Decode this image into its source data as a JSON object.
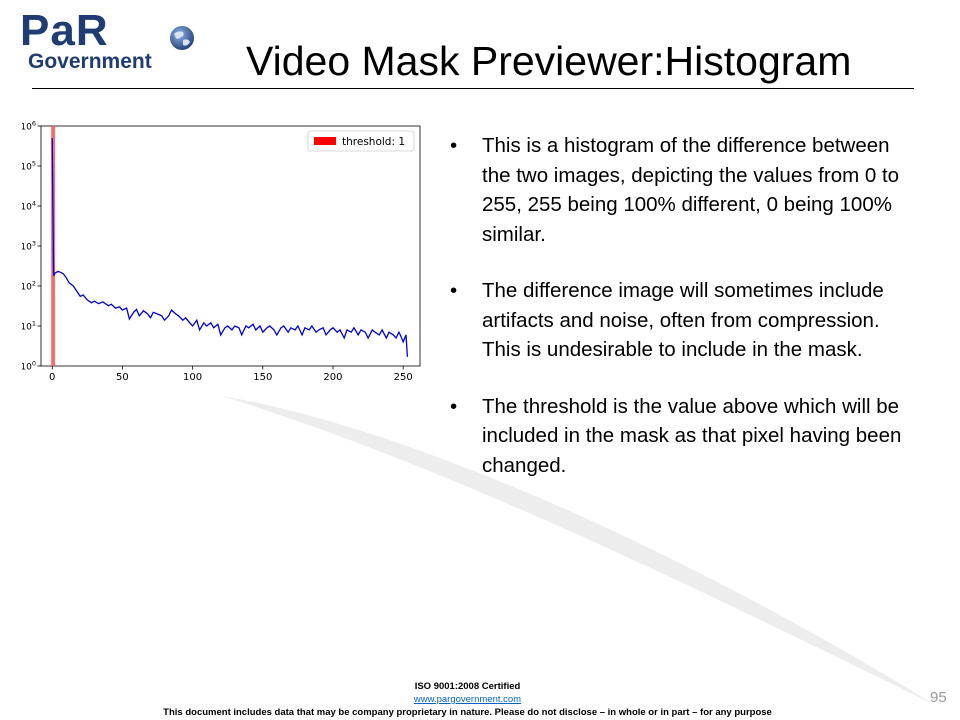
{
  "header": {
    "logo_main": "PaR",
    "logo_sub": "Government",
    "title": "Video Mask Previewer:Histogram"
  },
  "bullets": [
    "This is a histogram of the difference between the two images, depicting the values from 0 to 255, 255 being 100% different, 0 being 100% similar.",
    "The difference image will sometimes include artifacts and noise, often from compression. This is undesirable to include in the mask.",
    "The threshold is the value above which will be included in the mask as that pixel having been changed."
  ],
  "bullet_marker": "•",
  "footer": {
    "iso": "ISO 9001:2008 Certified",
    "url": "www.pargovernment.com",
    "disclaimer": "This document includes data that may be company proprietary in nature. Please do not disclose – in whole or in part – for any purpose"
  },
  "page_number": "95",
  "colors": {
    "logo_blue": "#1f3c73",
    "series": "#0000dd",
    "threshold": "#ff0000",
    "link": "#0563c1"
  },
  "chart_data": {
    "type": "line",
    "title": "",
    "xlabel": "",
    "ylabel": "",
    "xlim": [
      -8,
      262
    ],
    "ylim": [
      1,
      1000000
    ],
    "y_scale": "log",
    "x_ticks": [
      0,
      50,
      100,
      150,
      200,
      250
    ],
    "y_ticks": [
      1,
      10,
      100,
      1000,
      10000,
      100000,
      1000000
    ],
    "y_tick_labels": [
      {
        "base": "10",
        "exp": "0"
      },
      {
        "base": "10",
        "exp": "1"
      },
      {
        "base": "10",
        "exp": "2"
      },
      {
        "base": "10",
        "exp": "3"
      },
      {
        "base": "10",
        "exp": "4"
      },
      {
        "base": "10",
        "exp": "5"
      },
      {
        "base": "10",
        "exp": "6"
      }
    ],
    "legend": {
      "label": "threshold: 1",
      "position": "top-right"
    },
    "threshold": 1,
    "series": [
      {
        "x": [
          0,
          1,
          2,
          4,
          6,
          8,
          10,
          12,
          15,
          18,
          20,
          22,
          25,
          28,
          30,
          33,
          36,
          40,
          42,
          45,
          48,
          50,
          53,
          55,
          58,
          60,
          62,
          65,
          68,
          70,
          72,
          75,
          78,
          80,
          83,
          85,
          88,
          90,
          93,
          95,
          98,
          100,
          103,
          105,
          108,
          110,
          113,
          115,
          118,
          120,
          123,
          125,
          128,
          130,
          133,
          135,
          138,
          140,
          143,
          145,
          148,
          150,
          153,
          155,
          158,
          160,
          163,
          165,
          168,
          170,
          173,
          175,
          178,
          180,
          183,
          185,
          188,
          190,
          193,
          195,
          198,
          200,
          203,
          205,
          208,
          210,
          213,
          215,
          218,
          220,
          223,
          225,
          228,
          230,
          233,
          235,
          238,
          240,
          243,
          245,
          247,
          248,
          250,
          252,
          253
        ],
        "y": [
          500000,
          180,
          210,
          230,
          220,
          200,
          160,
          120,
          100,
          70,
          55,
          60,
          45,
          38,
          42,
          36,
          40,
          32,
          35,
          28,
          30,
          25,
          28,
          15,
          22,
          26,
          18,
          24,
          20,
          16,
          22,
          20,
          18,
          14,
          18,
          25,
          20,
          18,
          14,
          16,
          12,
          10,
          14,
          8,
          12,
          10,
          12,
          9,
          11,
          6,
          9,
          10,
          8,
          10,
          9,
          6,
          10,
          9,
          11,
          8,
          10,
          7,
          9,
          10,
          8,
          6,
          9,
          10,
          7,
          9,
          8,
          10,
          6,
          9,
          8,
          10,
          7,
          8,
          9,
          6,
          8,
          9,
          7,
          8,
          5,
          8,
          7,
          9,
          6,
          8,
          7,
          5,
          8,
          7,
          6,
          8,
          5,
          7,
          6,
          5,
          7,
          6,
          4,
          6,
          1.7
        ]
      }
    ]
  }
}
